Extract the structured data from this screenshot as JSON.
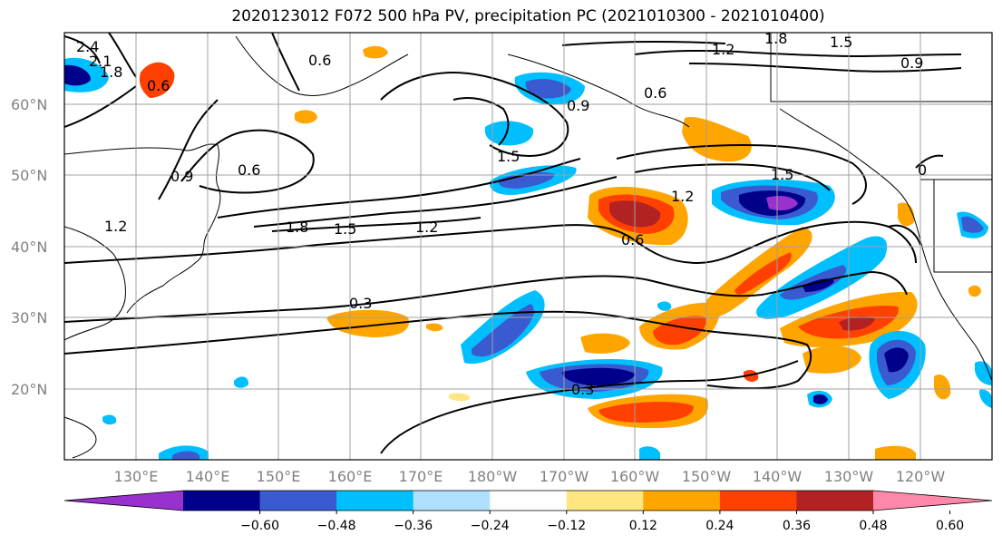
{
  "title": "2020123012 F072 500 hPa PV, precipitation PC (2021010300 - 2021010400)",
  "lat_labels": [
    "60°N",
    "50°N",
    "40°N",
    "30°N",
    "20°N"
  ],
  "lon_labels": [
    "130°E",
    "140°E",
    "150°E",
    "160°E",
    "170°E",
    "180°W",
    "170°W",
    "160°W",
    "150°W",
    "140°W",
    "130°W",
    "120°W"
  ],
  "contour_labels": [
    "2.4",
    "2.1",
    "1.8",
    "1.2",
    "0.6",
    "1.2",
    "1.8",
    "1.5",
    "0.9",
    "0.6",
    "0.9",
    "0.6",
    "1.5",
    "1.2",
    "1.5",
    "0.6",
    "0.9",
    "0.6",
    "1.8",
    "1.5",
    "1.2",
    "0.3",
    "0.3",
    "0"
  ],
  "colorbar": {
    "colors": [
      "#9932cc",
      "#00008b",
      "#3a5bd0",
      "#00bfff",
      "#b0e0ff",
      "#ffffff",
      "#ffe680",
      "#ffa500",
      "#ff4000",
      "#b22222",
      "#ff88aa"
    ],
    "tick_labels": [
      "−0.60",
      "−0.48",
      "−0.36",
      "−0.24",
      "−0.12",
      "0.12",
      "0.24",
      "0.36",
      "0.48",
      "0.60"
    ]
  },
  "chart_data": {
    "type": "heatmap",
    "title": "2020123012 F072 500 hPa PV, precipitation PC (2021010300 - 2021010400)",
    "contour_field": "500 hPa PV",
    "shaded_field": "precipitation PC",
    "contour_levels": [
      0,
      0.3,
      0.6,
      0.9,
      1.2,
      1.5,
      1.8,
      2.1,
      2.4
    ],
    "shading_levels": [
      -0.6,
      -0.48,
      -0.36,
      -0.24,
      -0.12,
      0.12,
      0.24,
      0.36,
      0.48,
      0.6
    ],
    "lon_range": [
      "120°E",
      "110°W"
    ],
    "lat_range": [
      "10°N",
      "70°N"
    ],
    "grid": true,
    "colorbar_extend": "both"
  }
}
